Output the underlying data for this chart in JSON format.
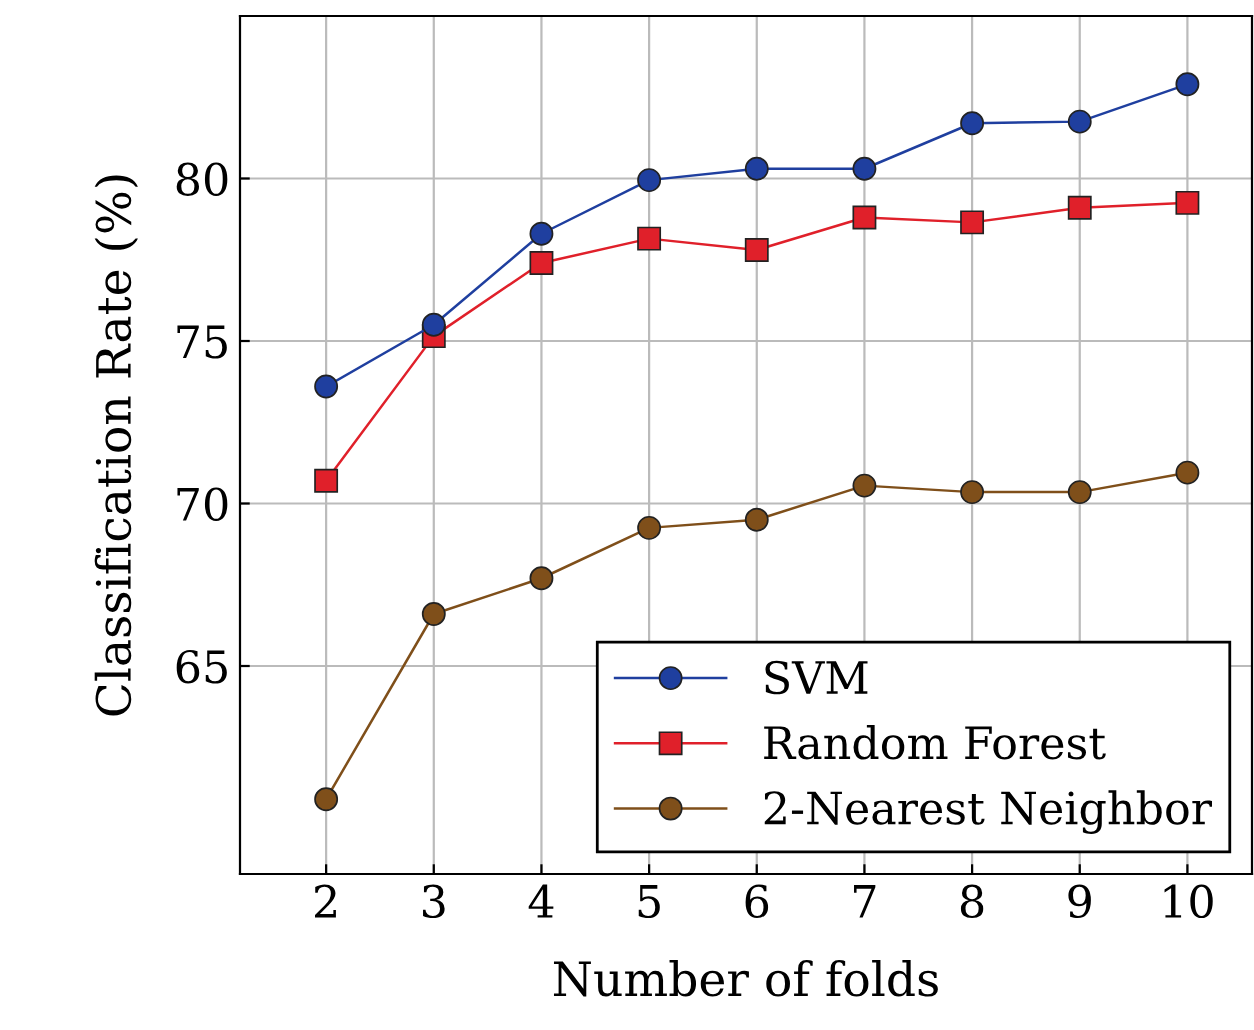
{
  "chart_data": {
    "type": "line",
    "xlabel": "Number of folds",
    "ylabel": "Classification Rate (%)",
    "x": [
      2,
      3,
      4,
      5,
      6,
      7,
      8,
      9,
      10
    ],
    "series": [
      {
        "name": "SVM",
        "color": "#1f3f9f",
        "marker": "circle",
        "values": [
          73.6,
          75.5,
          78.3,
          79.95,
          80.3,
          80.3,
          81.7,
          81.75,
          82.9
        ]
      },
      {
        "name": "Random Forest",
        "color": "#e0202a",
        "marker": "square",
        "values": [
          70.7,
          75.15,
          77.4,
          78.15,
          77.8,
          78.8,
          78.65,
          79.1,
          79.25
        ]
      },
      {
        "name": "2-Nearest Neighbor",
        "color": "#7f4f1a",
        "marker": "circle",
        "values": [
          60.9,
          66.6,
          67.7,
          69.25,
          69.5,
          70.55,
          70.35,
          70.35,
          70.95
        ]
      }
    ],
    "xlim": [
      1.2,
      10.6
    ],
    "ylim": [
      58.6,
      85
    ],
    "xticks": [
      2,
      3,
      4,
      5,
      6,
      7,
      8,
      9,
      10
    ],
    "yticks": [
      65,
      70,
      75,
      80
    ],
    "grid": true,
    "legend": "bottom right",
    "line_style": "solid"
  }
}
